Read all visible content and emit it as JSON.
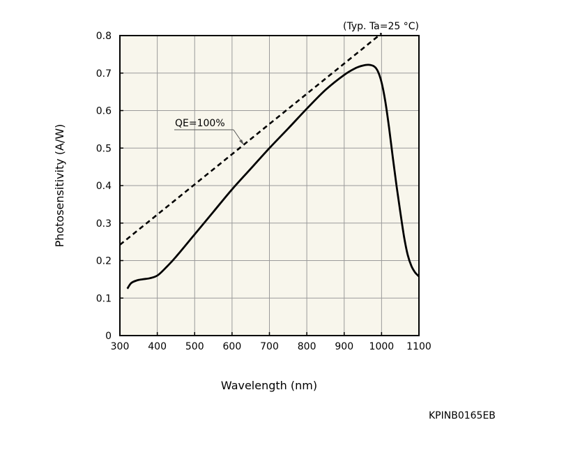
{
  "chart_data": {
    "type": "line",
    "xlabel": "Wavelength (nm)",
    "ylabel": "Photosensitivity (A/W)",
    "condition_note": "(Typ. Ta=25 °C)",
    "xlim": [
      300,
      1100
    ],
    "ylim": [
      0,
      0.8
    ],
    "x_ticks": [
      "300",
      "400",
      "500",
      "600",
      "700",
      "800",
      "900",
      "1000",
      "1100"
    ],
    "y_ticks": [
      "0",
      "0.1",
      "0.2",
      "0.3",
      "0.4",
      "0.5",
      "0.6",
      "0.7",
      "0.8"
    ],
    "grid": true,
    "series": [
      {
        "style": "solid",
        "x": [
          320,
          330,
          345,
          360,
          380,
          400,
          420,
          450,
          500,
          550,
          600,
          650,
          700,
          750,
          800,
          850,
          900,
          930,
          950,
          965,
          980,
          990,
          1000,
          1010,
          1020,
          1030,
          1040,
          1050,
          1060,
          1070,
          1080,
          1090,
          1100
        ],
        "y": [
          0.125,
          0.14,
          0.147,
          0.15,
          0.153,
          0.16,
          0.178,
          0.21,
          0.27,
          0.33,
          0.39,
          0.445,
          0.5,
          0.552,
          0.605,
          0.655,
          0.695,
          0.713,
          0.72,
          0.722,
          0.718,
          0.705,
          0.675,
          0.625,
          0.555,
          0.475,
          0.4,
          0.33,
          0.265,
          0.215,
          0.185,
          0.168,
          0.158
        ]
      },
      {
        "style": "dashed",
        "x": [
          300,
          1000
        ],
        "y": [
          0.242,
          0.806
        ]
      }
    ],
    "annotation": {
      "text": "QE=100%",
      "x": 610,
      "y": 0.51
    }
  },
  "figure_code": "KPINB0165EB"
}
